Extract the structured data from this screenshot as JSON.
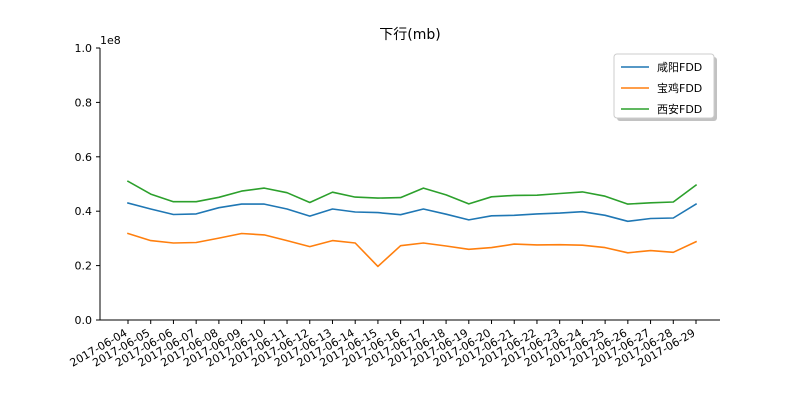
{
  "chart_data": {
    "type": "line",
    "title": "下行(mb)",
    "xlabel": "",
    "ylabel": "",
    "y_offset_label": "1e8",
    "ylim": [
      0,
      1.0
    ],
    "yticks": [
      "0.0",
      "0.2",
      "0.4",
      "0.6",
      "0.8",
      "1.0"
    ],
    "y_tick_values": [
      0,
      0.2,
      0.4,
      0.6,
      0.8,
      1.0
    ],
    "grid": false,
    "legend_position": "top-right",
    "categories": [
      "2017-06-04",
      "2017-06-05",
      "2017-06-06",
      "2017-06-07",
      "2017-06-08",
      "2017-06-09",
      "2017-06-10",
      "2017-06-11",
      "2017-06-12",
      "2017-06-13",
      "2017-06-14",
      "2017-06-15",
      "2017-06-16",
      "2017-06-17",
      "2017-06-18",
      "2017-06-19",
      "2017-06-20",
      "2017-06-21",
      "2017-06-22",
      "2017-06-23",
      "2017-06-24",
      "2017-06-25",
      "2017-06-26",
      "2017-06-27",
      "2017-06-28",
      "2017-06-29"
    ],
    "series": [
      {
        "name": "咸阳FDD",
        "color": "#1f77b4",
        "values": [
          0.43,
          0.408,
          0.388,
          0.39,
          0.413,
          0.426,
          0.426,
          0.408,
          0.382,
          0.408,
          0.397,
          0.395,
          0.387,
          0.408,
          0.389,
          0.368,
          0.383,
          0.385,
          0.39,
          0.393,
          0.398,
          0.385,
          0.363,
          0.373,
          0.375,
          0.426
        ]
      },
      {
        "name": "宝鸡FDD",
        "color": "#ff7f0e",
        "values": [
          0.318,
          0.292,
          0.283,
          0.285,
          0.301,
          0.318,
          0.313,
          0.292,
          0.27,
          0.292,
          0.283,
          0.197,
          0.273,
          0.283,
          0.272,
          0.26,
          0.266,
          0.279,
          0.276,
          0.277,
          0.275,
          0.266,
          0.247,
          0.255,
          0.249,
          0.288
        ]
      },
      {
        "name": "西安FDD",
        "color": "#2ca02c",
        "values": [
          0.51,
          0.463,
          0.435,
          0.435,
          0.451,
          0.474,
          0.485,
          0.468,
          0.432,
          0.47,
          0.452,
          0.448,
          0.45,
          0.485,
          0.46,
          0.427,
          0.453,
          0.458,
          0.459,
          0.465,
          0.471,
          0.455,
          0.426,
          0.431,
          0.434,
          0.496
        ]
      }
    ]
  }
}
